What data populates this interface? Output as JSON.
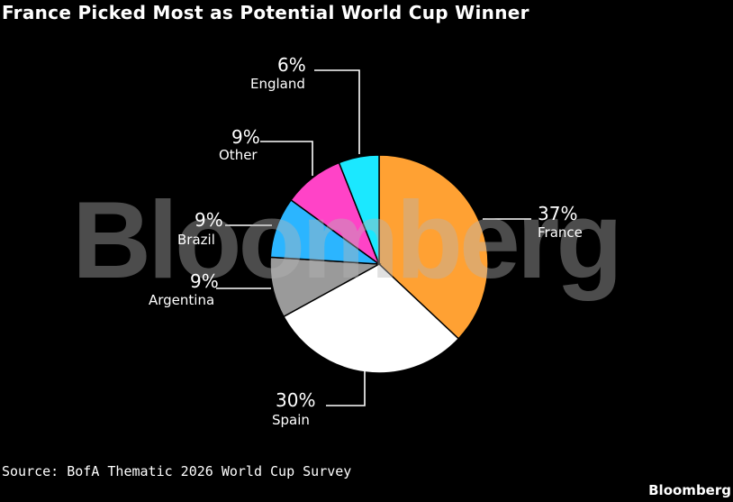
{
  "title": "France Picked Most as Potential World Cup Winner",
  "watermark": "Bloomberg",
  "source": "Source: BofA Thematic 2026 World Cup Survey",
  "brand": "Bloomberg",
  "chart_data": {
    "type": "pie",
    "title": "France Picked Most as Potential World Cup Winner",
    "slices": [
      {
        "label": "France",
        "value": 37,
        "value_label": "37%",
        "color": "#ffa133"
      },
      {
        "label": "Spain",
        "value": 30,
        "value_label": "30%",
        "color": "#ffffff"
      },
      {
        "label": "Argentina",
        "value": 9,
        "value_label": "9%",
        "color": "#9a9a9a"
      },
      {
        "label": "Brazil",
        "value": 9,
        "value_label": "9%",
        "color": "#2bb5ff"
      },
      {
        "label": "Other",
        "value": 9,
        "value_label": "9%",
        "color": "#ff43c7"
      },
      {
        "label": "England",
        "value": 6,
        "value_label": "6%",
        "color": "#1be8ff"
      }
    ]
  }
}
